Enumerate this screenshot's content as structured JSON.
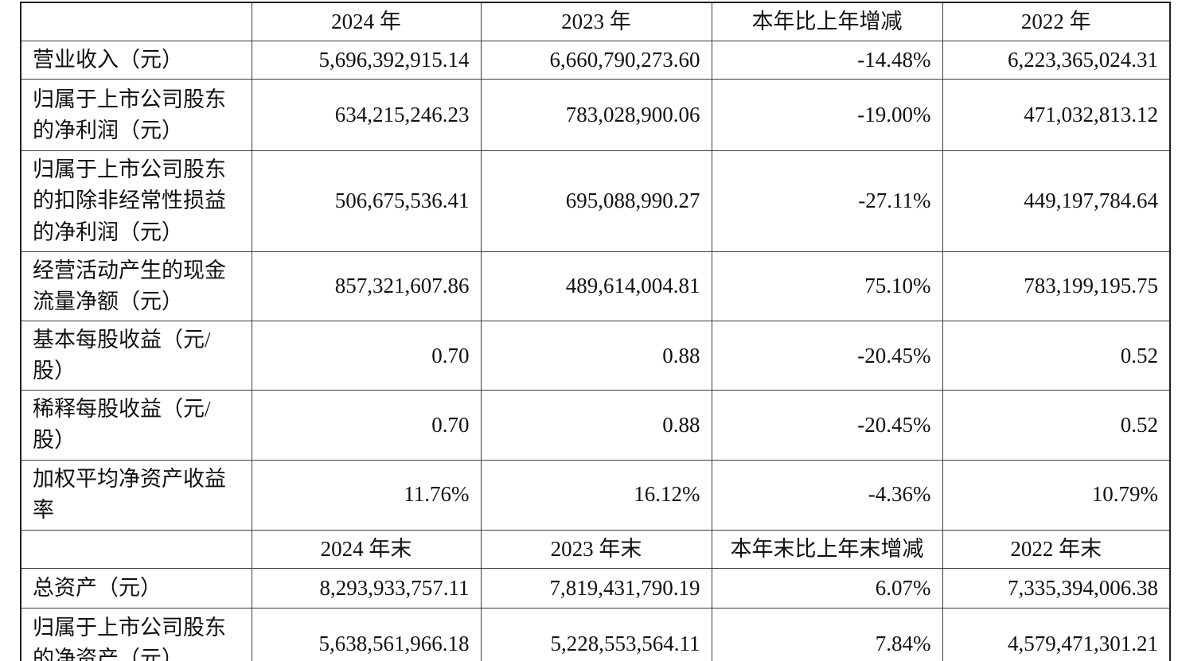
{
  "table": {
    "header1": {
      "c0": "",
      "c1": "2024 年",
      "c2": "2023 年",
      "c3": "本年比上年增减",
      "c4": "2022 年"
    },
    "rows1": [
      {
        "label": "营业收入（元）",
        "values": [
          "5,696,392,915.14",
          "6,660,790,273.60",
          "-14.48%",
          "6,223,365,024.31"
        ]
      },
      {
        "label": "归属于上市公司股东\n的净利润（元）",
        "values": [
          "634,215,246.23",
          "783,028,900.06",
          "-19.00%",
          "471,032,813.12"
        ]
      },
      {
        "label": "归属于上市公司股东\n的扣除非经常性损益\n的净利润（元）",
        "values": [
          "506,675,536.41",
          "695,088,990.27",
          "-27.11%",
          "449,197,784.64"
        ]
      },
      {
        "label": "经营活动产生的现金\n流量净额（元）",
        "values": [
          "857,321,607.86",
          "489,614,004.81",
          "75.10%",
          "783,199,195.75"
        ]
      },
      {
        "label": "基本每股收益（元/\n股）",
        "values": [
          "0.70",
          "0.88",
          "-20.45%",
          "0.52"
        ]
      },
      {
        "label": "稀释每股收益（元/\n股）",
        "values": [
          "0.70",
          "0.88",
          "-20.45%",
          "0.52"
        ]
      },
      {
        "label": "加权平均净资产收益\n率",
        "values": [
          "11.76%",
          "16.12%",
          "-4.36%",
          "10.79%"
        ]
      }
    ],
    "header2": {
      "c0": "",
      "c1": "2024 年末",
      "c2": "2023 年末",
      "c3": "本年末比上年末增减",
      "c4": "2022 年末"
    },
    "rows2": [
      {
        "label": "总资产（元）",
        "values": [
          "8,293,933,757.11",
          "7,819,431,790.19",
          "6.07%",
          "7,335,394,006.38"
        ]
      },
      {
        "label": "归属于上市公司股东\n的净资产（元）",
        "values": [
          "5,638,561,966.18",
          "5,228,553,564.11",
          "7.84%",
          "4,579,471,301.21"
        ]
      }
    ]
  },
  "colors": {
    "header_bg": "#d4d4d4",
    "label_bg": "#d4d4d4",
    "cell_bg": "#ffffff",
    "border": "#3c3c3c",
    "outer_border": "#1f1f1f",
    "text": "#111111"
  }
}
